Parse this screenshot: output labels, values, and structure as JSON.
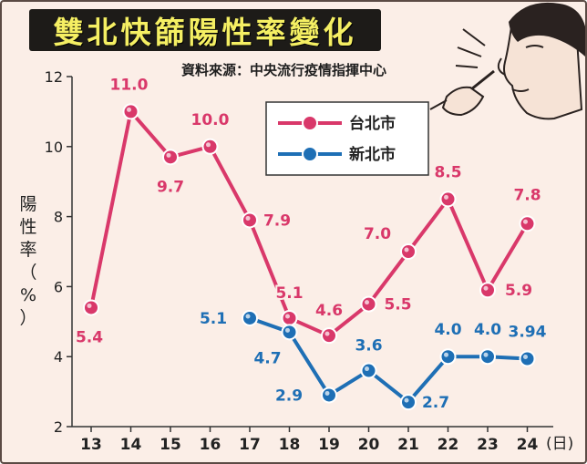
{
  "title": "雙北快篩陽性率變化",
  "source": "資料來源：中央流行疫情指揮中心",
  "colors": {
    "taipei": "#d9386a",
    "newtaipei": "#1e6fb5",
    "background": "#fbeee7",
    "title_bg": "#1d1b18",
    "title_text": "#f5ef63"
  },
  "chart_data": {
    "type": "line",
    "ylabel": "陽性率（%）",
    "ylabel_chars": [
      "陽",
      "性",
      "率",
      "（",
      "%",
      "）"
    ],
    "x_unit": "(日)",
    "ylim": [
      2,
      12
    ],
    "yticks": [
      2,
      4,
      6,
      8,
      10,
      12
    ],
    "x": [
      13,
      14,
      15,
      16,
      17,
      18,
      19,
      20,
      21,
      22,
      23,
      24
    ],
    "grid": false,
    "legend_position": "top-center",
    "series": [
      {
        "name": "台北市",
        "color": "#d9386a",
        "x": [
          13,
          14,
          15,
          16,
          17,
          18,
          19,
          20,
          21,
          22,
          23,
          24
        ],
        "values": [
          5.4,
          11.0,
          9.7,
          10.0,
          7.9,
          5.1,
          4.6,
          5.5,
          7.0,
          8.5,
          5.9,
          7.8
        ],
        "labels": [
          "5.4",
          "11.0",
          "9.7",
          "10.0",
          "7.9",
          "5.1",
          "4.6",
          "5.5",
          "7.0",
          "8.5",
          "5.9",
          "7.8"
        ]
      },
      {
        "name": "新北市",
        "color": "#1e6fb5",
        "x": [
          17,
          18,
          19,
          20,
          21,
          22,
          23,
          24
        ],
        "values": [
          5.1,
          4.7,
          2.9,
          3.6,
          2.7,
          4.0,
          4.0,
          3.94
        ],
        "labels": [
          "5.1",
          "4.7",
          "2.9",
          "3.6",
          "2.7",
          "4.0",
          "4.0",
          "3.94"
        ]
      }
    ]
  }
}
